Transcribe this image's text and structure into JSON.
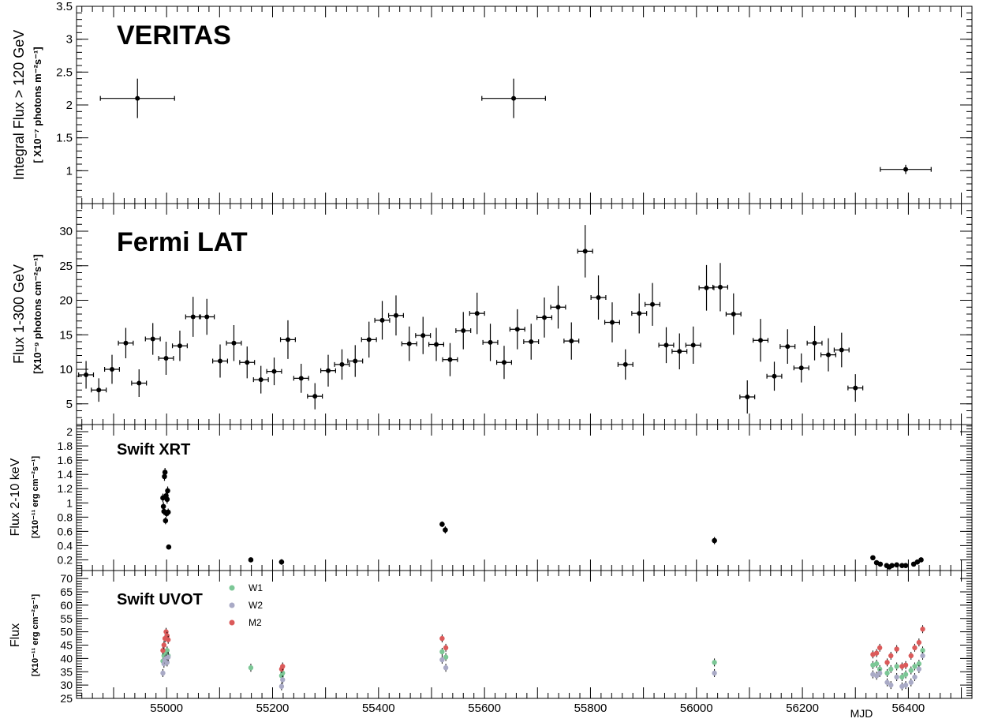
{
  "chart_data": [
    {
      "type": "scatter",
      "panel": "veritas",
      "title": "VERITAS",
      "ylabel": "Integral Flux > 120 GeV",
      "ylabel_unit": "[ X10⁻⁷ photons m⁻²s⁻¹]",
      "ylim": [
        0.5,
        3.5
      ],
      "yticks": [
        1,
        1.5,
        2,
        2.5,
        3,
        3.5
      ],
      "ytick_labels": [
        "1",
        "1.5",
        "2",
        "2.5",
        "3",
        "3.5"
      ],
      "points": [
        {
          "x": 54945,
          "y": 2.1,
          "xerr": 70,
          "yerr": 0.3
        },
        {
          "x": 55655,
          "y": 2.1,
          "xerr": 60,
          "yerr": 0.3
        },
        {
          "x": 56395,
          "y": 1.02,
          "xerr": 48,
          "yerr": 0.07
        }
      ]
    },
    {
      "type": "scatter",
      "panel": "fermi",
      "title": "Fermi LAT",
      "ylabel": "Flux 1-300 GeV",
      "ylabel_unit": "[X10⁻⁹ photons cm⁻²s⁻¹]",
      "ylim": [
        2,
        34
      ],
      "yticks": [
        5,
        10,
        15,
        20,
        25,
        30
      ],
      "ytick_labels": [
        "5",
        "10",
        "15",
        "20",
        "25",
        "30"
      ],
      "points": [
        {
          "x": 54848,
          "y": 9.2,
          "xerr": 14,
          "yerr": 2.0
        },
        {
          "x": 54872,
          "y": 7.0,
          "xerr": 14,
          "yerr": 1.7
        },
        {
          "x": 54897,
          "y": 10.0,
          "xerr": 14,
          "yerr": 2.1
        },
        {
          "x": 54923,
          "y": 13.8,
          "xerr": 14,
          "yerr": 2.2
        },
        {
          "x": 54948,
          "y": 8.0,
          "xerr": 14,
          "yerr": 2.0
        },
        {
          "x": 54974,
          "y": 14.4,
          "xerr": 14,
          "yerr": 2.3
        },
        {
          "x": 54999,
          "y": 11.6,
          "xerr": 14,
          "yerr": 2.4
        },
        {
          "x": 55025,
          "y": 13.4,
          "xerr": 14,
          "yerr": 2.2
        },
        {
          "x": 55050,
          "y": 17.6,
          "xerr": 14,
          "yerr": 2.9
        },
        {
          "x": 55076,
          "y": 17.6,
          "xerr": 14,
          "yerr": 2.6
        },
        {
          "x": 55101,
          "y": 11.2,
          "xerr": 14,
          "yerr": 2.4
        },
        {
          "x": 55127,
          "y": 13.8,
          "xerr": 14,
          "yerr": 2.6
        },
        {
          "x": 55152,
          "y": 11.0,
          "xerr": 14,
          "yerr": 2.3
        },
        {
          "x": 55178,
          "y": 8.5,
          "xerr": 14,
          "yerr": 2.0
        },
        {
          "x": 55203,
          "y": 9.7,
          "xerr": 14,
          "yerr": 2.0
        },
        {
          "x": 55229,
          "y": 14.3,
          "xerr": 14,
          "yerr": 2.8
        },
        {
          "x": 55254,
          "y": 8.7,
          "xerr": 14,
          "yerr": 2.1
        },
        {
          "x": 55280,
          "y": 6.1,
          "xerr": 14,
          "yerr": 1.9
        },
        {
          "x": 55305,
          "y": 9.8,
          "xerr": 14,
          "yerr": 2.3
        },
        {
          "x": 55331,
          "y": 10.7,
          "xerr": 14,
          "yerr": 2.2
        },
        {
          "x": 55356,
          "y": 11.2,
          "xerr": 14,
          "yerr": 2.3
        },
        {
          "x": 55382,
          "y": 14.3,
          "xerr": 14,
          "yerr": 2.6
        },
        {
          "x": 55407,
          "y": 17.1,
          "xerr": 14,
          "yerr": 2.8
        },
        {
          "x": 55433,
          "y": 17.8,
          "xerr": 14,
          "yerr": 2.9
        },
        {
          "x": 55458,
          "y": 13.7,
          "xerr": 14,
          "yerr": 2.5
        },
        {
          "x": 55484,
          "y": 14.9,
          "xerr": 14,
          "yerr": 2.7
        },
        {
          "x": 55509,
          "y": 13.6,
          "xerr": 14,
          "yerr": 2.4
        },
        {
          "x": 55535,
          "y": 11.4,
          "xerr": 14,
          "yerr": 2.4
        },
        {
          "x": 55560,
          "y": 15.6,
          "xerr": 14,
          "yerr": 2.7
        },
        {
          "x": 55586,
          "y": 18.1,
          "xerr": 14,
          "yerr": 3.0
        },
        {
          "x": 55611,
          "y": 13.9,
          "xerr": 14,
          "yerr": 2.7
        },
        {
          "x": 55637,
          "y": 11.0,
          "xerr": 14,
          "yerr": 2.4
        },
        {
          "x": 55662,
          "y": 15.8,
          "xerr": 14,
          "yerr": 2.9
        },
        {
          "x": 55688,
          "y": 14.0,
          "xerr": 14,
          "yerr": 2.6
        },
        {
          "x": 55713,
          "y": 17.5,
          "xerr": 14,
          "yerr": 2.9
        },
        {
          "x": 55739,
          "y": 19.0,
          "xerr": 14,
          "yerr": 3.1
        },
        {
          "x": 55764,
          "y": 14.1,
          "xerr": 14,
          "yerr": 2.7
        },
        {
          "x": 55790,
          "y": 27.1,
          "xerr": 14,
          "yerr": 3.8
        },
        {
          "x": 55815,
          "y": 20.4,
          "xerr": 14,
          "yerr": 3.2
        },
        {
          "x": 55841,
          "y": 16.8,
          "xerr": 14,
          "yerr": 2.9
        },
        {
          "x": 55866,
          "y": 10.7,
          "xerr": 14,
          "yerr": 2.2
        },
        {
          "x": 55892,
          "y": 18.1,
          "xerr": 14,
          "yerr": 2.9
        },
        {
          "x": 55917,
          "y": 19.4,
          "xerr": 14,
          "yerr": 3.1
        },
        {
          "x": 55943,
          "y": 13.5,
          "xerr": 14,
          "yerr": 2.6
        },
        {
          "x": 55968,
          "y": 12.6,
          "xerr": 14,
          "yerr": 2.6
        },
        {
          "x": 55994,
          "y": 13.5,
          "xerr": 14,
          "yerr": 2.7
        },
        {
          "x": 56019,
          "y": 21.8,
          "xerr": 14,
          "yerr": 3.3
        },
        {
          "x": 56045,
          "y": 21.9,
          "xerr": 14,
          "yerr": 3.5
        },
        {
          "x": 56070,
          "y": 18.0,
          "xerr": 14,
          "yerr": 3.0
        },
        {
          "x": 56096,
          "y": 6.0,
          "xerr": 14,
          "yerr": 2.4
        },
        {
          "x": 56121,
          "y": 14.2,
          "xerr": 14,
          "yerr": 3.1
        },
        {
          "x": 56147,
          "y": 9.0,
          "xerr": 14,
          "yerr": 2.1
        },
        {
          "x": 56172,
          "y": 13.3,
          "xerr": 14,
          "yerr": 2.5
        },
        {
          "x": 56198,
          "y": 10.2,
          "xerr": 14,
          "yerr": 2.1
        },
        {
          "x": 56223,
          "y": 13.8,
          "xerr": 14,
          "yerr": 2.5
        },
        {
          "x": 56249,
          "y": 12.1,
          "xerr": 14,
          "yerr": 2.4
        },
        {
          "x": 56274,
          "y": 12.8,
          "xerr": 14,
          "yerr": 2.5
        },
        {
          "x": 56300,
          "y": 7.3,
          "xerr": 14,
          "yerr": 2.0
        }
      ]
    },
    {
      "type": "scatter",
      "panel": "xrt",
      "title": "Swift XRT",
      "ylabel": "Flux 2-10 keV",
      "ylabel_unit": "[X10⁻¹¹ erg cm⁻²s⁻¹]",
      "ylim": [
        0.05,
        2.1
      ],
      "yticks": [
        0.2,
        0.4,
        0.6,
        0.8,
        1,
        1.2,
        1.4,
        1.6,
        1.8,
        2
      ],
      "ytick_labels": [
        "0.2",
        "0.4",
        "0.6",
        "0.8",
        "1",
        "1.2",
        "1.4",
        "1.6",
        "1.8",
        "2"
      ],
      "points": [
        {
          "x": 54993,
          "y": 1.07,
          "yerr": 0.06
        },
        {
          "x": 54994,
          "y": 0.95,
          "yerr": 0.06
        },
        {
          "x": 54995,
          "y": 0.88,
          "yerr": 0.05
        },
        {
          "x": 54996,
          "y": 1.37,
          "yerr": 0.06
        },
        {
          "x": 54997,
          "y": 1.43,
          "yerr": 0.06
        },
        {
          "x": 54998,
          "y": 0.75,
          "yerr": 0.05
        },
        {
          "x": 54999,
          "y": 1.1,
          "yerr": 0.06
        },
        {
          "x": 55000,
          "y": 0.85,
          "yerr": 0.05
        },
        {
          "x": 55001,
          "y": 1.05,
          "yerr": 0.06
        },
        {
          "x": 55002,
          "y": 1.17,
          "yerr": 0.06
        },
        {
          "x": 55003,
          "y": 0.87,
          "yerr": 0.05
        },
        {
          "x": 55004,
          "y": 0.38,
          "yerr": 0.03
        },
        {
          "x": 55159,
          "y": 0.2,
          "yerr": 0.02
        },
        {
          "x": 55217,
          "y": 0.17,
          "yerr": 0.04
        },
        {
          "x": 55520,
          "y": 0.7,
          "yerr": 0.04
        },
        {
          "x": 55526,
          "y": 0.62,
          "yerr": 0.05
        },
        {
          "x": 56034,
          "y": 0.47,
          "yerr": 0.05
        },
        {
          "x": 56333,
          "y": 0.23,
          "yerr": 0.02
        },
        {
          "x": 56340,
          "y": 0.16,
          "yerr": 0.02
        },
        {
          "x": 56347,
          "y": 0.14,
          "yerr": 0.02
        },
        {
          "x": 56359,
          "y": 0.12,
          "yerr": 0.02
        },
        {
          "x": 56364,
          "y": 0.1,
          "yerr": 0.02
        },
        {
          "x": 56369,
          "y": 0.12,
          "yerr": 0.02
        },
        {
          "x": 56378,
          "y": 0.13,
          "yerr": 0.02
        },
        {
          "x": 56388,
          "y": 0.12,
          "yerr": 0.02
        },
        {
          "x": 56395,
          "y": 0.12,
          "yerr": 0.02
        },
        {
          "x": 56410,
          "y": 0.14,
          "yerr": 0.02
        },
        {
          "x": 56417,
          "y": 0.17,
          "yerr": 0.02
        },
        {
          "x": 56424,
          "y": 0.2,
          "yerr": 0.02
        }
      ]
    },
    {
      "type": "scatter",
      "panel": "uvot",
      "title": "Swift UVOT",
      "ylabel": "Flux",
      "ylabel_unit": "[X10⁻¹¹ erg cm⁻²s⁻¹]",
      "xlabel": "MJD",
      "xlim": [
        54830,
        56520
      ],
      "xticks": [
        55000,
        55200,
        55400,
        55600,
        55800,
        56000,
        56200,
        56400
      ],
      "xtick_labels": [
        "55000",
        "55200",
        "55400",
        "55600",
        "55800",
        "56000",
        "56200",
        "56400"
      ],
      "ylim": [
        25,
        73
      ],
      "yticks": [
        25,
        30,
        35,
        40,
        45,
        50,
        55,
        60,
        65,
        70
      ],
      "ytick_labels": [
        "25",
        "30",
        "35",
        "40",
        "45",
        "50",
        "55",
        "60",
        "65",
        "70"
      ],
      "legend_position": "top-left",
      "series": [
        {
          "name": "W1",
          "color": "#7cc796",
          "points": [
            {
              "x": 54993,
              "y": 39
            },
            {
              "x": 54995,
              "y": 41
            },
            {
              "x": 54997,
              "y": 42
            },
            {
              "x": 54999,
              "y": 40
            },
            {
              "x": 55001,
              "y": 43
            },
            {
              "x": 55003,
              "y": 41
            },
            {
              "x": 55159,
              "y": 36.5
            },
            {
              "x": 55217,
              "y": 33.5
            },
            {
              "x": 55219,
              "y": 34.5
            },
            {
              "x": 55520,
              "y": 42.5
            },
            {
              "x": 55527,
              "y": 40.5
            },
            {
              "x": 56034,
              "y": 38.5
            },
            {
              "x": 56333,
              "y": 37.5
            },
            {
              "x": 56340,
              "y": 38
            },
            {
              "x": 56346,
              "y": 36
            },
            {
              "x": 56360,
              "y": 34.5
            },
            {
              "x": 56367,
              "y": 36
            },
            {
              "x": 56378,
              "y": 37
            },
            {
              "x": 56388,
              "y": 33
            },
            {
              "x": 56395,
              "y": 34
            },
            {
              "x": 56405,
              "y": 35.5
            },
            {
              "x": 56412,
              "y": 37
            },
            {
              "x": 56420,
              "y": 38
            },
            {
              "x": 56427,
              "y": 43
            }
          ]
        },
        {
          "name": "W2",
          "color": "#a9aac6",
          "points": [
            {
              "x": 54993,
              "y": 34.5
            },
            {
              "x": 54995,
              "y": 38
            },
            {
              "x": 54997,
              "y": 39.5
            },
            {
              "x": 54999,
              "y": 40
            },
            {
              "x": 55001,
              "y": 38.5
            },
            {
              "x": 55003,
              "y": 40.5
            },
            {
              "x": 55217,
              "y": 29.5
            },
            {
              "x": 55219,
              "y": 32
            },
            {
              "x": 55520,
              "y": 39.5
            },
            {
              "x": 55527,
              "y": 36.5
            },
            {
              "x": 56034,
              "y": 34.5
            },
            {
              "x": 56333,
              "y": 34
            },
            {
              "x": 56340,
              "y": 33.5
            },
            {
              "x": 56346,
              "y": 34.5
            },
            {
              "x": 56360,
              "y": 31
            },
            {
              "x": 56367,
              "y": 30
            },
            {
              "x": 56378,
              "y": 33
            },
            {
              "x": 56388,
              "y": 29.5
            },
            {
              "x": 56395,
              "y": 30
            },
            {
              "x": 56405,
              "y": 31
            },
            {
              "x": 56412,
              "y": 33
            },
            {
              "x": 56420,
              "y": 36
            },
            {
              "x": 56427,
              "y": 41
            }
          ]
        },
        {
          "name": "M2",
          "color": "#db5a5a",
          "points": [
            {
              "x": 54993,
              "y": 43
            },
            {
              "x": 54995,
              "y": 45
            },
            {
              "x": 54997,
              "y": 47.5
            },
            {
              "x": 54999,
              "y": 50
            },
            {
              "x": 55001,
              "y": 48.5
            },
            {
              "x": 55003,
              "y": 47
            },
            {
              "x": 55217,
              "y": 36
            },
            {
              "x": 55219,
              "y": 37
            },
            {
              "x": 55520,
              "y": 47.5
            },
            {
              "x": 55527,
              "y": 44
            },
            {
              "x": 56333,
              "y": 41.5
            },
            {
              "x": 56340,
              "y": 42
            },
            {
              "x": 56346,
              "y": 44
            },
            {
              "x": 56360,
              "y": 38.5
            },
            {
              "x": 56367,
              "y": 41
            },
            {
              "x": 56378,
              "y": 43.5
            },
            {
              "x": 56388,
              "y": 37
            },
            {
              "x": 56395,
              "y": 37.5
            },
            {
              "x": 56405,
              "y": 41
            },
            {
              "x": 56412,
              "y": 44
            },
            {
              "x": 56420,
              "y": 46
            },
            {
              "x": 56427,
              "y": 51
            }
          ]
        }
      ]
    }
  ]
}
